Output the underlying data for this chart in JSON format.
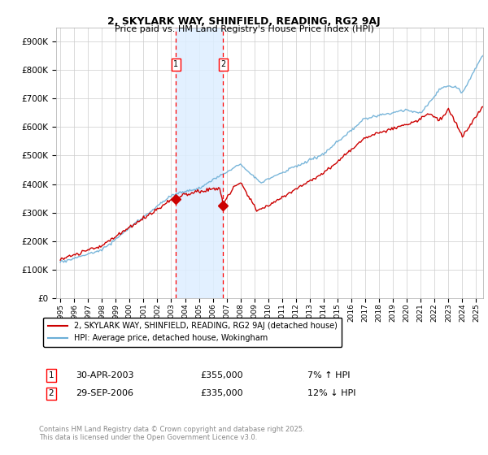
{
  "title": "2, SKYLARK WAY, SHINFIELD, READING, RG2 9AJ",
  "subtitle": "Price paid vs. HM Land Registry's House Price Index (HPI)",
  "background_color": "#ffffff",
  "grid_color": "#cccccc",
  "sale1_date": 2003.33,
  "sale1_price": 355000,
  "sale1_label": "1",
  "sale1_marker_date": "30-APR-2003",
  "sale1_pct": "7% ↑ HPI",
  "sale2_date": 2006.75,
  "sale2_price": 335000,
  "sale2_label": "2",
  "sale2_marker_date": "29-SEP-2006",
  "sale2_pct": "12% ↓ HPI",
  "hpi_color": "#6baed6",
  "price_color": "#cc0000",
  "vspan_color": "#ddeeff",
  "legend_label_price": "2, SKYLARK WAY, SHINFIELD, READING, RG2 9AJ (detached house)",
  "legend_label_hpi": "HPI: Average price, detached house, Wokingham",
  "copyright": "Contains HM Land Registry data © Crown copyright and database right 2025.\nThis data is licensed under the Open Government Licence v3.0.",
  "ylim": [
    0,
    950000
  ],
  "xlim_start": 1994.7,
  "xlim_end": 2025.5,
  "yticks": [
    0,
    100000,
    200000,
    300000,
    400000,
    500000,
    600000,
    700000,
    800000,
    900000
  ],
  "ytick_labels": [
    "£0",
    "£100K",
    "£200K",
    "£300K",
    "£400K",
    "£500K",
    "£600K",
    "£700K",
    "£800K",
    "£900K"
  ],
  "fig_width": 6.0,
  "fig_height": 5.6,
  "dpi": 100
}
